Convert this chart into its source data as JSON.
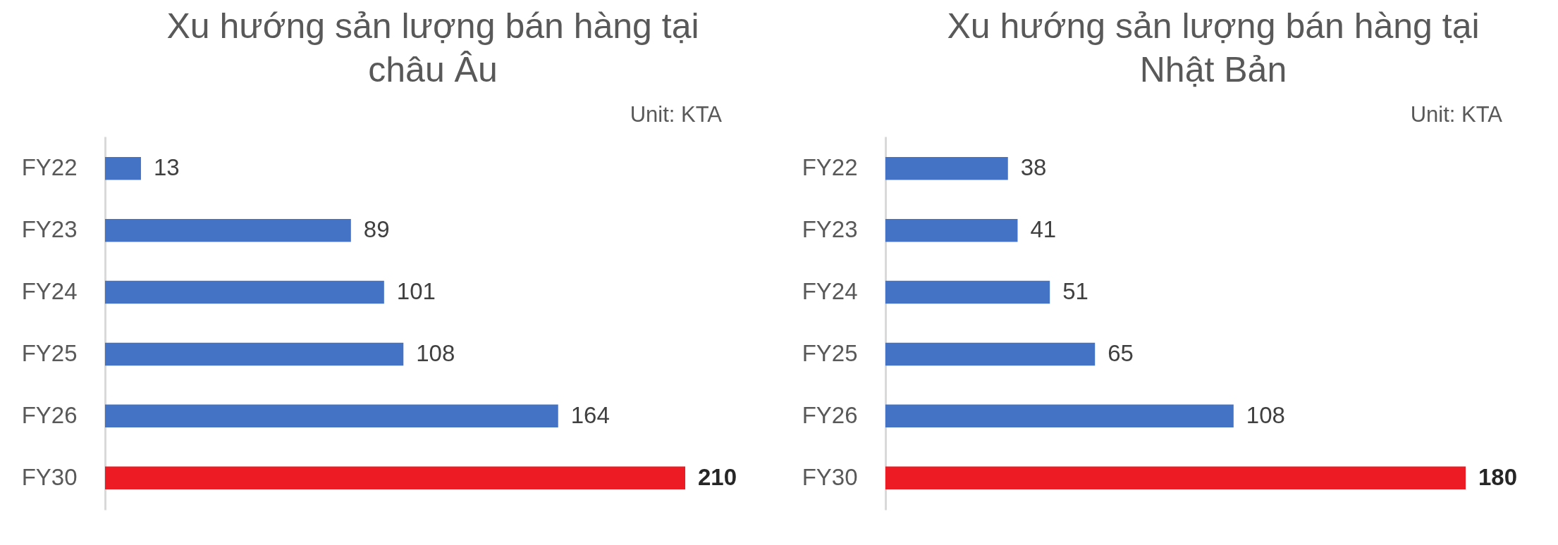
{
  "chart_data": [
    {
      "type": "bar",
      "orientation": "horizontal",
      "title": "Xu hướng sản lượng bán hàng tại châu Âu",
      "annotations": [
        "Unit: KTA"
      ],
      "categories": [
        "FY22",
        "FY23",
        "FY24",
        "FY25",
        "FY26",
        "FY30"
      ],
      "values": [
        13,
        89,
        101,
        108,
        164,
        210
      ],
      "colors": [
        "#4472c4",
        "#4472c4",
        "#4472c4",
        "#4472c4",
        "#4472c4",
        "#ed1c24"
      ],
      "data_labels": true,
      "tick_labels": "y"
    },
    {
      "type": "bar",
      "orientation": "horizontal",
      "title": "Xu hướng sản lượng bán hàng tại Nhật Bản",
      "annotations": [
        "Unit: KTA"
      ],
      "categories": [
        "FY22",
        "FY23",
        "FY24",
        "FY25",
        "FY26",
        "FY30"
      ],
      "values": [
        38,
        41,
        51,
        65,
        108,
        180
      ],
      "colors": [
        "#4472c4",
        "#4472c4",
        "#4472c4",
        "#4472c4",
        "#4472c4",
        "#ed1c24"
      ],
      "data_labels": true,
      "tick_labels": "y"
    }
  ]
}
